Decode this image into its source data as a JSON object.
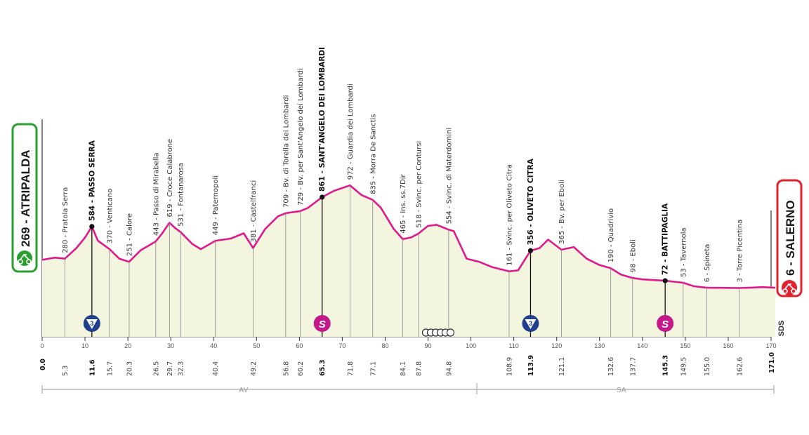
{
  "chart_data": {
    "type": "area",
    "start": {
      "label": "269 - ATRIPALDA",
      "color": "#2aa12e"
    },
    "finish": {
      "label": "6 - SALERNO",
      "color": "#e4202c"
    },
    "brand": "SDS",
    "colors": {
      "line": "#e0198c",
      "fill": "#f3f5df",
      "climb_badge": "#1f3f8c",
      "sprint_badge": "#c4178a"
    },
    "xlim": [
      0,
      170
    ],
    "x_ticks": [
      0,
      10,
      20,
      30,
      40,
      50,
      60,
      70,
      80,
      90,
      100,
      110,
      120,
      130,
      140,
      150,
      160,
      170
    ],
    "altitude_ticks": [
      0,
      200,
      400,
      600,
      800
    ],
    "profile": [
      [
        0,
        269
      ],
      [
        3,
        290
      ],
      [
        5.3,
        280
      ],
      [
        8,
        380
      ],
      [
        10,
        480
      ],
      [
        11.6,
        584
      ],
      [
        13,
        450
      ],
      [
        15.7,
        370
      ],
      [
        18,
        280
      ],
      [
        20.3,
        251
      ],
      [
        23,
        360
      ],
      [
        26.5,
        443
      ],
      [
        28,
        520
      ],
      [
        29.7,
        619
      ],
      [
        31,
        570
      ],
      [
        32.3,
        531
      ],
      [
        35,
        420
      ],
      [
        37,
        370
      ],
      [
        40.4,
        449
      ],
      [
        44,
        470
      ],
      [
        47,
        520
      ],
      [
        49.2,
        381
      ],
      [
        52,
        560
      ],
      [
        55,
        680
      ],
      [
        56.8,
        709
      ],
      [
        58.5,
        720
      ],
      [
        60.2,
        729
      ],
      [
        62,
        760
      ],
      [
        65.3,
        861
      ],
      [
        68,
        920
      ],
      [
        71.8,
        972
      ],
      [
        74.5,
        880
      ],
      [
        77.1,
        835
      ],
      [
        79,
        760
      ],
      [
        82,
        560
      ],
      [
        84.1,
        465
      ],
      [
        86,
        480
      ],
      [
        87.8,
        518
      ],
      [
        90,
        590
      ],
      [
        92,
        600
      ],
      [
        94.8,
        554
      ],
      [
        96,
        540
      ],
      [
        99,
        280
      ],
      [
        102,
        250
      ],
      [
        105,
        200
      ],
      [
        108.9,
        161
      ],
      [
        111,
        170
      ],
      [
        113.9,
        356
      ],
      [
        116,
        380
      ],
      [
        118,
        460
      ],
      [
        121.1,
        365
      ],
      [
        124,
        390
      ],
      [
        127,
        280
      ],
      [
        130,
        220
      ],
      [
        132.6,
        190
      ],
      [
        135,
        130
      ],
      [
        137.7,
        98
      ],
      [
        140,
        85
      ],
      [
        145.3,
        72
      ],
      [
        149.5,
        53
      ],
      [
        152,
        20
      ],
      [
        155,
        6
      ],
      [
        158,
        5
      ],
      [
        162.6,
        3
      ],
      [
        165,
        6
      ],
      [
        168,
        12
      ],
      [
        171,
        6
      ]
    ],
    "waypoints": [
      {
        "km": "5.3",
        "x": 5.3,
        "alt": 280,
        "label": "280 - Pratola Serra",
        "major": false
      },
      {
        "km": "11.6",
        "x": 11.6,
        "alt": 584,
        "label": "584 - PASSO SERRA",
        "major": true,
        "gpm": "3"
      },
      {
        "km": "15.7",
        "x": 15.7,
        "alt": 370,
        "label": "370 - Venticano",
        "major": false
      },
      {
        "km": "20.3",
        "x": 20.3,
        "alt": 251,
        "label": "251 - Calore",
        "major": false
      },
      {
        "km": "26.5",
        "x": 26.5,
        "alt": 443,
        "label": "443 - Passo di Mirabella",
        "major": false
      },
      {
        "km": "29.7",
        "x": 29.7,
        "alt": 619,
        "label": "619 - Croce Calabrone",
        "major": false
      },
      {
        "km": "32.3",
        "x": 32.3,
        "alt": 531,
        "label": "531 - Fontanarosa",
        "major": false
      },
      {
        "km": "40.4",
        "x": 40.4,
        "alt": 449,
        "label": "449 - Paternopoli",
        "major": false
      },
      {
        "km": "49.2",
        "x": 49.2,
        "alt": 381,
        "label": "381 - Castelfranci",
        "major": false
      },
      {
        "km": "56.8",
        "x": 56.8,
        "alt": 709,
        "label": "709 - Bv. di Torella dei Lombardi",
        "major": false
      },
      {
        "km": "60.2",
        "x": 60.2,
        "alt": 729,
        "label": "729 - Bv. per Sant'Angelo dei Lombardi",
        "major": false
      },
      {
        "km": "65.3",
        "x": 65.3,
        "alt": 861,
        "label": "861 - SANT'ANGELO DEI LOMBARDI",
        "major": true,
        "sprint": "S"
      },
      {
        "km": "71.8",
        "x": 71.8,
        "alt": 972,
        "label": "972 - Guardia dei Lombardi",
        "major": false
      },
      {
        "km": "77.1",
        "x": 77.1,
        "alt": 835,
        "label": "835 - Morra De Sanctis",
        "major": false
      },
      {
        "km": "84.1",
        "x": 84.1,
        "alt": 465,
        "label": "465 - Ins. ss.7Dir",
        "major": false
      },
      {
        "km": "87.8",
        "x": 87.8,
        "alt": 518,
        "label": "518 - Svinc. per Contursi",
        "major": false
      },
      {
        "km": "94.8",
        "x": 94.8,
        "alt": 554,
        "label": "554 - Svinc. di Materdomini",
        "major": false
      },
      {
        "km": "108.9",
        "x": 108.9,
        "alt": 161,
        "label": "161 - Svinc. per Oliveto Citra",
        "major": false
      },
      {
        "km": "113.9",
        "x": 113.9,
        "alt": 356,
        "label": "356 - OLIVETO CITRA",
        "major": true,
        "gpm": "3"
      },
      {
        "km": "121.1",
        "x": 121.1,
        "alt": 365,
        "label": "365 - Bv. per Eboli",
        "major": false
      },
      {
        "km": "132.6",
        "x": 132.6,
        "alt": 190,
        "label": "190 - Quadrivio",
        "major": false
      },
      {
        "km": "137.7",
        "x": 137.7,
        "alt": 98,
        "label": "98 - Eboli",
        "major": false
      },
      {
        "km": "145.3",
        "x": 145.3,
        "alt": 72,
        "label": "72 - BATTIPAGLIA",
        "major": true,
        "sprint": "S"
      },
      {
        "km": "149.5",
        "x": 149.5,
        "alt": 53,
        "label": "53 - Tavernola",
        "major": false
      },
      {
        "km": "155.0",
        "x": 155.0,
        "alt": 6,
        "label": "6 - Spineta",
        "major": false
      },
      {
        "km": "162.6",
        "x": 162.6,
        "alt": 3,
        "label": "3 - Torre Picentina",
        "major": false
      }
    ],
    "km_start": "0.0",
    "km_finish": "171.0",
    "regions": [
      {
        "code": "AV",
        "from": 0,
        "to": 101
      },
      {
        "code": "SA",
        "from": 101,
        "to": 171
      }
    ]
  }
}
